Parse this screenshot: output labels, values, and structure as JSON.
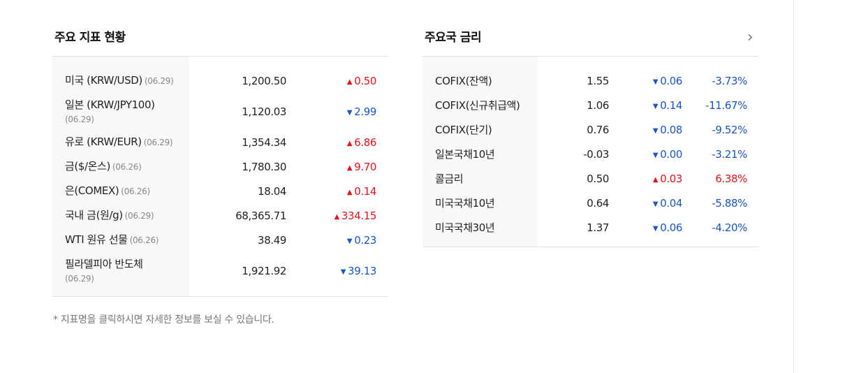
{
  "left": {
    "title": "주요 지표 현황",
    "rows": [
      {
        "name": "미국 (KRW/USD)",
        "date": "(06.29)",
        "value": "1,200.50",
        "dir": "up",
        "change": "0.50"
      },
      {
        "name": "일본 (KRW/JPY100)",
        "date": "(06.29)",
        "value": "1,120.03",
        "dir": "down",
        "change": "2.99"
      },
      {
        "name": "유로 (KRW/EUR)",
        "date": "(06.29)",
        "value": "1,354.34",
        "dir": "up",
        "change": "6.86"
      },
      {
        "name": "금($/온스)",
        "date": "(06.26)",
        "value": "1,780.30",
        "dir": "up",
        "change": "9.70"
      },
      {
        "name": "은(COMEX)",
        "date": "(06.26)",
        "value": "18.04",
        "dir": "up",
        "change": "0.14"
      },
      {
        "name": "국내 금(원/g)",
        "date": "(06.29)",
        "value": "68,365.71",
        "dir": "up",
        "change": "334.15"
      },
      {
        "name": "WTI 원유 선물",
        "date": "(06.26)",
        "value": "38.49",
        "dir": "down",
        "change": "0.23"
      },
      {
        "name": "필라델피아 반도체",
        "date": "(06.29)",
        "value": "1,921.92",
        "dir": "down",
        "change": "39.13"
      }
    ],
    "note": "* 지표명을 클릭하시면 자세한 정보를 보실 수 있습니다."
  },
  "right": {
    "title": "주요국 금리",
    "more_icon": "chevron-right-icon",
    "rows": [
      {
        "name": "COFIX(잔액)",
        "value": "1.55",
        "dir": "down",
        "change": "0.06",
        "pct": "-3.73%"
      },
      {
        "name": "COFIX(신규취급액)",
        "value": "1.06",
        "dir": "down",
        "change": "0.14",
        "pct": "-11.67%"
      },
      {
        "name": "COFIX(단기)",
        "value": "0.76",
        "dir": "down",
        "change": "0.08",
        "pct": "-9.52%"
      },
      {
        "name": "일본국채10년",
        "value": "-0.03",
        "dir": "down",
        "change": "0.00",
        "pct": "-3.21%"
      },
      {
        "name": "콜금리",
        "value": "0.50",
        "dir": "up",
        "change": "0.03",
        "pct": "6.38%"
      },
      {
        "name": "미국국채10년",
        "value": "0.64",
        "dir": "down",
        "change": "0.04",
        "pct": "-5.88%"
      },
      {
        "name": "미국국채30년",
        "value": "1.37",
        "dir": "down",
        "change": "0.06",
        "pct": "-4.20%"
      }
    ]
  },
  "colors": {
    "up": "#e8121a",
    "down": "#1a56c4"
  }
}
